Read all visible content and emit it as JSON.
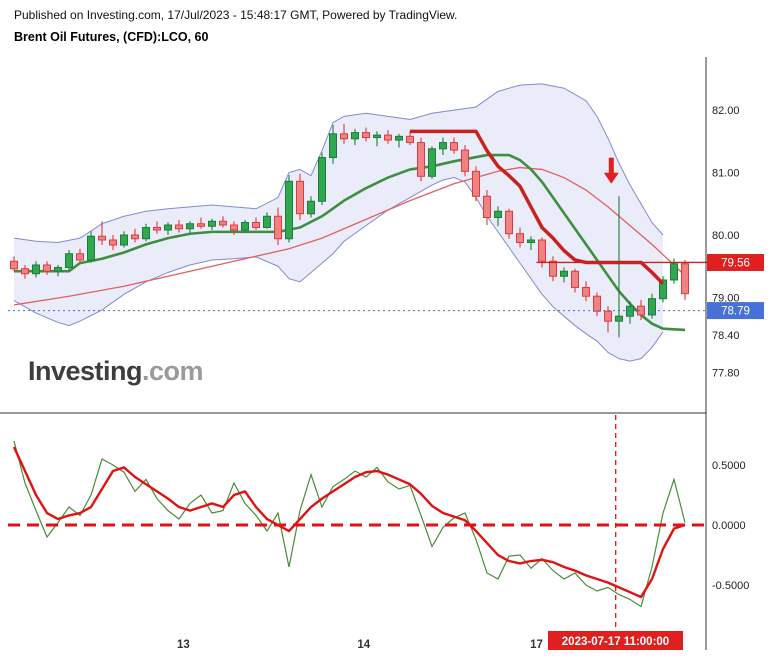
{
  "header": {
    "published": "Published on Investing.com, 17/Jul/2023 - 15:48:17 GMT, Powered by TradingView.",
    "title": "Brent Oil Futures, (CFD):LCO, 60"
  },
  "watermark": {
    "bold": "Investing",
    "light": ".com"
  },
  "price_labels": {
    "level": "79.56",
    "current": "78.79"
  },
  "time_label": "2023-07-17 11:00:00",
  "colors": {
    "up_fill": "#2fa84f",
    "up_border": "#1c7c38",
    "down_fill": "#ef8383",
    "down_border": "#dd3b3b",
    "band_fill": "rgba(110,118,210,0.14)",
    "band_stroke": "#7f8bd0",
    "ma_green": "#3e8e41",
    "ma_thin": "#e26060",
    "signal": "#c9211e",
    "level_line": "#d02020",
    "current_line": "#4a6bd6",
    "badge_red": "#e01f1f",
    "badge_blue": "#4671d9",
    "osc_red": "#e01212",
    "osc_green": "#4b8b3b",
    "axis_text": "#222",
    "axis_line": "#333",
    "arrow": "#e02020"
  },
  "chart_data": {
    "type": "candlestick",
    "title": "Brent Oil Futures, (CFD):LCO, 60",
    "interval": "60",
    "x_days": [
      {
        "label": "13",
        "i": 15.4
      },
      {
        "label": "14",
        "i": 31.8
      },
      {
        "label": "17",
        "i": 47.5
      }
    ],
    "main": {
      "ylim": [
        77.15,
        82.85
      ],
      "y_ticks": [
        {
          "label": "82.00",
          "v": 82.0
        },
        {
          "label": "81.00",
          "v": 81.0
        },
        {
          "label": "80.00",
          "v": 80.0
        },
        {
          "label": "79.00",
          "v": 79.0
        },
        {
          "label": "78.40",
          "v": 78.4
        },
        {
          "label": "77.80",
          "v": 77.8
        }
      ],
      "level_price": 79.56,
      "current_price": 78.79,
      "arrow": {
        "index": 54.3,
        "tip_price": 80.82
      },
      "candles": [
        [
          79.58,
          79.66,
          79.42,
          79.46
        ],
        [
          79.46,
          79.52,
          79.3,
          79.38
        ],
        [
          79.38,
          79.58,
          79.32,
          79.52
        ],
        [
          79.52,
          79.58,
          79.36,
          79.42
        ],
        [
          79.42,
          79.52,
          79.34,
          79.48
        ],
        [
          79.48,
          79.76,
          79.44,
          79.7
        ],
        [
          79.7,
          79.78,
          79.54,
          79.6
        ],
        [
          79.6,
          80.06,
          79.56,
          79.98
        ],
        [
          79.98,
          80.22,
          79.84,
          79.92
        ],
        [
          79.92,
          80.0,
          79.76,
          79.84
        ],
        [
          79.84,
          80.06,
          79.8,
          80.0
        ],
        [
          80.0,
          80.1,
          79.88,
          79.94
        ],
        [
          79.94,
          80.18,
          79.9,
          80.12
        ],
        [
          80.12,
          80.22,
          80.02,
          80.08
        ],
        [
          80.08,
          80.2,
          80.0,
          80.16
        ],
        [
          80.16,
          80.24,
          80.04,
          80.1
        ],
        [
          80.1,
          80.22,
          80.04,
          80.18
        ],
        [
          80.18,
          80.28,
          80.1,
          80.14
        ],
        [
          80.14,
          80.26,
          80.08,
          80.22
        ],
        [
          80.22,
          80.3,
          80.12,
          80.16
        ],
        [
          80.16,
          80.22,
          80.0,
          80.08
        ],
        [
          80.08,
          80.24,
          80.04,
          80.2
        ],
        [
          80.2,
          80.28,
          80.08,
          80.12
        ],
        [
          80.12,
          80.36,
          80.1,
          80.3
        ],
        [
          80.3,
          80.44,
          79.84,
          79.94
        ],
        [
          79.94,
          80.96,
          79.88,
          80.86
        ],
        [
          80.86,
          80.98,
          80.24,
          80.34
        ],
        [
          80.34,
          80.62,
          80.28,
          80.54
        ],
        [
          80.54,
          81.32,
          80.48,
          81.24
        ],
        [
          81.24,
          81.76,
          81.14,
          81.62
        ],
        [
          81.62,
          81.78,
          81.46,
          81.54
        ],
        [
          81.54,
          81.7,
          81.44,
          81.64
        ],
        [
          81.64,
          81.72,
          81.5,
          81.56
        ],
        [
          81.56,
          81.66,
          81.42,
          81.6
        ],
        [
          81.6,
          81.68,
          81.46,
          81.52
        ],
        [
          81.52,
          81.62,
          81.4,
          81.58
        ],
        [
          81.58,
          81.66,
          81.44,
          81.48
        ],
        [
          81.48,
          81.56,
          80.86,
          80.94
        ],
        [
          80.94,
          81.42,
          80.9,
          81.38
        ],
        [
          81.38,
          81.56,
          81.28,
          81.48
        ],
        [
          81.48,
          81.56,
          81.3,
          81.36
        ],
        [
          81.36,
          81.44,
          80.94,
          81.02
        ],
        [
          81.02,
          81.1,
          80.54,
          80.62
        ],
        [
          80.62,
          80.72,
          80.16,
          80.28
        ],
        [
          80.28,
          80.46,
          80.14,
          80.38
        ],
        [
          80.38,
          80.42,
          79.94,
          80.02
        ],
        [
          80.02,
          80.12,
          79.8,
          79.88
        ],
        [
          79.88,
          79.98,
          79.76,
          79.92
        ],
        [
          79.92,
          79.96,
          79.48,
          79.58
        ],
        [
          79.58,
          79.66,
          79.26,
          79.34
        ],
        [
          79.34,
          79.48,
          79.24,
          79.42
        ],
        [
          79.42,
          79.46,
          79.08,
          79.16
        ],
        [
          79.16,
          79.26,
          78.94,
          79.02
        ],
        [
          79.02,
          79.08,
          78.7,
          78.78
        ],
        [
          78.78,
          78.86,
          78.44,
          78.62
        ],
        [
          78.62,
          80.62,
          78.36,
          78.7
        ],
        [
          78.7,
          78.94,
          78.58,
          78.86
        ],
        [
          78.86,
          78.96,
          78.64,
          78.72
        ],
        [
          78.72,
          79.06,
          78.66,
          78.98
        ],
        [
          78.98,
          79.34,
          78.92,
          79.28
        ],
        [
          79.28,
          79.62,
          79.22,
          79.54
        ],
        [
          79.54,
          79.6,
          78.96,
          79.06
        ]
      ],
      "bb_upper": [
        [
          0,
          79.95
        ],
        [
          2,
          79.9
        ],
        [
          4,
          79.88
        ],
        [
          6,
          79.95
        ],
        [
          8,
          80.18
        ],
        [
          10,
          80.3
        ],
        [
          12,
          80.38
        ],
        [
          14,
          80.42
        ],
        [
          16,
          80.45
        ],
        [
          18,
          80.48
        ],
        [
          20,
          80.45
        ],
        [
          22,
          80.42
        ],
        [
          24,
          80.6
        ],
        [
          25,
          81.0
        ],
        [
          26,
          81.05
        ],
        [
          27,
          80.95
        ],
        [
          28,
          81.35
        ],
        [
          29,
          81.8
        ],
        [
          30,
          81.9
        ],
        [
          32,
          81.95
        ],
        [
          34,
          81.9
        ],
        [
          36,
          81.85
        ],
        [
          38,
          81.95
        ],
        [
          40,
          82.0
        ],
        [
          42,
          82.05
        ],
        [
          44,
          82.3
        ],
        [
          46,
          82.4
        ],
        [
          48,
          82.42
        ],
        [
          50,
          82.35
        ],
        [
          52,
          82.15
        ],
        [
          53,
          81.9
        ],
        [
          54,
          81.55
        ],
        [
          55,
          81.15
        ],
        [
          56,
          80.8
        ],
        [
          57,
          80.5
        ],
        [
          58,
          80.2
        ],
        [
          59,
          80.0
        ]
      ],
      "bb_lower": [
        [
          0,
          78.95
        ],
        [
          2,
          78.75
        ],
        [
          4,
          78.6
        ],
        [
          5,
          78.55
        ],
        [
          6,
          78.62
        ],
        [
          8,
          78.8
        ],
        [
          10,
          79.05
        ],
        [
          12,
          79.25
        ],
        [
          14,
          79.4
        ],
        [
          16,
          79.52
        ],
        [
          18,
          79.6
        ],
        [
          20,
          79.62
        ],
        [
          22,
          79.65
        ],
        [
          24,
          79.5
        ],
        [
          25,
          79.3
        ],
        [
          26,
          79.25
        ],
        [
          27,
          79.4
        ],
        [
          28,
          79.55
        ],
        [
          29,
          79.7
        ],
        [
          30,
          79.9
        ],
        [
          32,
          80.15
        ],
        [
          34,
          80.4
        ],
        [
          36,
          80.6
        ],
        [
          38,
          80.8
        ],
        [
          39,
          80.88
        ],
        [
          40,
          80.92
        ],
        [
          41,
          80.85
        ],
        [
          42,
          80.6
        ],
        [
          43,
          80.3
        ],
        [
          44,
          80.05
        ],
        [
          45,
          79.8
        ],
        [
          46,
          79.55
        ],
        [
          47,
          79.3
        ],
        [
          48,
          79.05
        ],
        [
          49,
          78.85
        ],
        [
          50,
          78.7
        ],
        [
          51,
          78.55
        ],
        [
          52,
          78.42
        ],
        [
          53,
          78.3
        ],
        [
          54,
          78.12
        ],
        [
          55,
          78.02
        ],
        [
          56,
          77.98
        ],
        [
          57,
          78.02
        ],
        [
          58,
          78.2
        ],
        [
          59,
          78.45
        ]
      ],
      "ma_green": [
        [
          0,
          79.42
        ],
        [
          5,
          79.42
        ],
        [
          6,
          79.55
        ],
        [
          8,
          79.62
        ],
        [
          10,
          79.72
        ],
        [
          12,
          79.85
        ],
        [
          14,
          79.95
        ],
        [
          16,
          80.02
        ],
        [
          18,
          80.05
        ],
        [
          24,
          80.05
        ],
        [
          26,
          80.12
        ],
        [
          28,
          80.3
        ],
        [
          30,
          80.55
        ],
        [
          32,
          80.75
        ],
        [
          34,
          80.92
        ],
        [
          36,
          81.05
        ],
        [
          38,
          81.1
        ],
        [
          40,
          81.18
        ],
        [
          43,
          81.28
        ],
        [
          45,
          81.28
        ],
        [
          46,
          81.2
        ],
        [
          47,
          81.05
        ],
        [
          48,
          80.85
        ],
        [
          49,
          80.6
        ],
        [
          50,
          80.35
        ],
        [
          51,
          80.1
        ],
        [
          52,
          79.85
        ],
        [
          53,
          79.6
        ],
        [
          54,
          79.35
        ],
        [
          55,
          79.1
        ],
        [
          56,
          78.9
        ],
        [
          57,
          78.72
        ],
        [
          58,
          78.58
        ],
        [
          59,
          78.5
        ],
        [
          61,
          78.48
        ]
      ],
      "ma_red_thin": [
        [
          0,
          78.88
        ],
        [
          5,
          79.02
        ],
        [
          10,
          79.18
        ],
        [
          15,
          79.38
        ],
        [
          20,
          79.58
        ],
        [
          25,
          79.78
        ],
        [
          28,
          79.95
        ],
        [
          32,
          80.25
        ],
        [
          36,
          80.55
        ],
        [
          40,
          80.82
        ],
        [
          44,
          81.02
        ],
        [
          46,
          81.08
        ],
        [
          48,
          81.05
        ],
        [
          50,
          80.92
        ],
        [
          52,
          80.72
        ],
        [
          54,
          80.45
        ],
        [
          56,
          80.15
        ],
        [
          58,
          79.85
        ],
        [
          60,
          79.52
        ],
        [
          61,
          79.35
        ]
      ],
      "signal_red_thick": [
        [
          36,
          81.66
        ],
        [
          42,
          81.66
        ],
        [
          43,
          81.35
        ],
        [
          44,
          81.1
        ],
        [
          45,
          80.95
        ],
        [
          46,
          80.78
        ],
        [
          47,
          80.45
        ],
        [
          48,
          80.12
        ],
        [
          49,
          79.95
        ],
        [
          50,
          79.75
        ],
        [
          51,
          79.6
        ],
        [
          52,
          79.56
        ],
        [
          57,
          79.56
        ],
        [
          58,
          79.4
        ],
        [
          59,
          79.22
        ]
      ]
    },
    "oscillator": {
      "ylim": [
        -0.875,
        0.917
      ],
      "y_ticks": [
        {
          "label": "0.5000",
          "v": 0.5
        },
        {
          "label": "0.0000",
          "v": 0.0
        },
        {
          "label": "-0.5000",
          "v": -0.5
        }
      ],
      "zero_level": 0.0,
      "vline_index": 54.7,
      "red": [
        0.65,
        0.45,
        0.25,
        0.1,
        0.05,
        0.08,
        0.1,
        0.15,
        0.3,
        0.45,
        0.48,
        0.4,
        0.34,
        0.28,
        0.22,
        0.15,
        0.12,
        0.15,
        0.18,
        0.15,
        0.25,
        0.28,
        0.15,
        0.05,
        0.0,
        -0.05,
        0.05,
        0.15,
        0.22,
        0.28,
        0.34,
        0.4,
        0.44,
        0.45,
        0.42,
        0.38,
        0.34,
        0.26,
        0.16,
        0.1,
        0.07,
        0.04,
        -0.05,
        -0.15,
        -0.25,
        -0.3,
        -0.32,
        -0.3,
        -0.29,
        -0.31,
        -0.35,
        -0.38,
        -0.42,
        -0.45,
        -0.48,
        -0.52,
        -0.56,
        -0.6,
        -0.45,
        -0.2,
        -0.03,
        0.0
      ],
      "green": [
        0.7,
        0.35,
        0.12,
        -0.1,
        0.02,
        0.15,
        0.08,
        0.25,
        0.55,
        0.5,
        0.44,
        0.28,
        0.38,
        0.22,
        0.12,
        0.05,
        0.18,
        0.25,
        0.1,
        0.12,
        0.35,
        0.18,
        0.08,
        -0.05,
        0.1,
        -0.35,
        0.12,
        0.42,
        0.15,
        0.32,
        0.38,
        0.45,
        0.4,
        0.48,
        0.36,
        0.3,
        0.33,
        0.08,
        -0.18,
        -0.02,
        0.06,
        0.1,
        -0.12,
        -0.4,
        -0.45,
        -0.26,
        -0.25,
        -0.36,
        -0.28,
        -0.38,
        -0.45,
        -0.4,
        -0.5,
        -0.55,
        -0.52,
        -0.58,
        -0.62,
        -0.68,
        -0.35,
        0.1,
        0.38,
        0.02
      ]
    }
  }
}
